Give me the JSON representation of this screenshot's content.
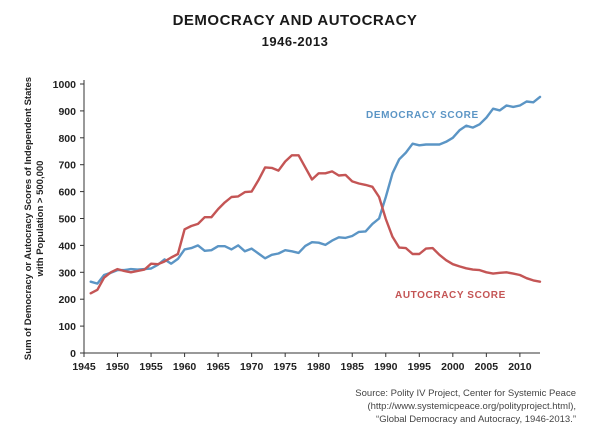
{
  "chart_data": {
    "type": "line",
    "title": "DEMOCRACY AND AUTOCRACY",
    "subtitle": "1946-2013",
    "ylabel_line1": "Sum of Democracy or Autocracy Scores of Independent States",
    "ylabel_line2": "with Population > 500,000",
    "xlim": [
      1945,
      2013
    ],
    "ylim": [
      0,
      1000
    ],
    "xticks": [
      1945,
      1950,
      1955,
      1960,
      1965,
      1970,
      1975,
      1980,
      1985,
      1990,
      1995,
      2000,
      2005,
      2010
    ],
    "yticks": [
      0,
      100,
      200,
      300,
      400,
      500,
      600,
      700,
      800,
      900,
      1000
    ],
    "x": [
      1946,
      1947,
      1948,
      1949,
      1950,
      1951,
      1952,
      1953,
      1954,
      1955,
      1956,
      1957,
      1958,
      1959,
      1960,
      1961,
      1962,
      1963,
      1964,
      1965,
      1966,
      1967,
      1968,
      1969,
      1970,
      1971,
      1972,
      1973,
      1974,
      1975,
      1976,
      1977,
      1978,
      1979,
      1980,
      1981,
      1982,
      1983,
      1984,
      1985,
      1986,
      1987,
      1988,
      1989,
      1990,
      1991,
      1992,
      1993,
      1994,
      1995,
      1996,
      1997,
      1998,
      1999,
      2000,
      2001,
      2002,
      2003,
      2004,
      2005,
      2006,
      2007,
      2008,
      2009,
      2010,
      2011,
      2012,
      2013
    ],
    "series": [
      {
        "name": "DEMOCRACY SCORE",
        "color": "#5b95c5",
        "values": [
          265,
          258,
          290,
          298,
          308,
          308,
          312,
          310,
          312,
          314,
          328,
          348,
          332,
          350,
          385,
          390,
          400,
          380,
          382,
          397,
          397,
          385,
          400,
          378,
          388,
          370,
          352,
          365,
          370,
          382,
          378,
          372,
          398,
          412,
          410,
          402,
          418,
          430,
          428,
          435,
          450,
          452,
          480,
          500,
          580,
          668,
          720,
          745,
          778,
          772,
          775,
          775,
          775,
          785,
          800,
          828,
          845,
          838,
          850,
          875,
          908,
          902,
          920,
          915,
          920,
          935,
          932,
          952
        ]
      },
      {
        "name": "AUTOCRACY SCORE",
        "color": "#c45555",
        "values": [
          222,
          235,
          280,
          300,
          312,
          305,
          300,
          305,
          310,
          332,
          330,
          340,
          355,
          368,
          460,
          472,
          480,
          505,
          505,
          535,
          560,
          580,
          582,
          598,
          600,
          642,
          690,
          688,
          678,
          712,
          735,
          735,
          690,
          645,
          668,
          668,
          675,
          660,
          662,
          638,
          630,
          625,
          618,
          580,
          498,
          432,
          392,
          390,
          368,
          368,
          388,
          390,
          365,
          345,
          330,
          322,
          315,
          310,
          308,
          300,
          295,
          298,
          300,
          295,
          290,
          278,
          270,
          265
        ]
      }
    ],
    "annotations": [
      {
        "text": "DEMOCRACY SCORE",
        "color": "#5b95c5"
      },
      {
        "text": "AUTOCRACY SCORE",
        "color": "#c45555"
      }
    ]
  },
  "source": {
    "line1": "Source: Polity IV Project, Center for Systemic Peace",
    "line2": "(http://www.systemicpeace.org/polityproject.html),",
    "line3": "“Global Democracy and Autocracy, 1946-2013.”"
  }
}
